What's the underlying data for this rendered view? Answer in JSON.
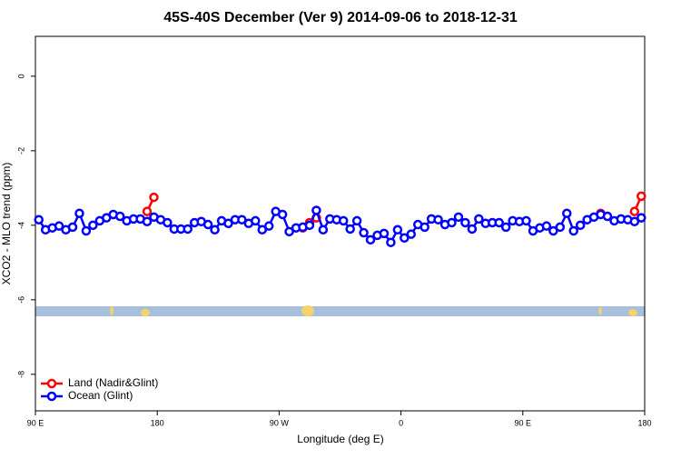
{
  "chart_data": {
    "type": "line",
    "title": "45S-40S December (Ver 9)   2014-09-06 to 2018-12-31",
    "xlabel": "Longitude (deg E)",
    "ylabel": "XCO2 - MLO trend (ppm)",
    "xlim": [
      90,
      540
    ],
    "xticks": [
      {
        "value": 90,
        "label": "90 E"
      },
      180,
      {
        "value": 270,
        "label": "90 W"
      },
      {
        "value": 360,
        "label": "0"
      },
      {
        "value": 450,
        "label": "90 E"
      },
      {
        "value": 540,
        "label": "180"
      }
    ],
    "ylim": [
      -8.98,
      1.07
    ],
    "yticks": [
      0,
      -2,
      -4,
      -6,
      -8
    ],
    "grid": false,
    "legend": "bottomleft",
    "series": [
      {
        "name": "Land (Nadir&Glint)",
        "color": "#ff0000",
        "x": [
          172.5,
          177.5,
          182.5,
          287.5,
          292.5,
          297.5,
          302.5,
          507.5,
          512.5,
          532.5,
          537.5
        ],
        "values": [
          -3.63,
          -3.25,
          null,
          -4.07,
          -3.93,
          -3.8,
          null,
          -3.68,
          null,
          -3.63,
          -3.22
        ]
      },
      {
        "name": "Ocean (Glint)",
        "color": "#0000ff",
        "x": [
          92.5,
          97.5,
          102.5,
          107.5,
          112.5,
          117.5,
          122.5,
          127.5,
          132.5,
          137.5,
          142.5,
          147.5,
          152.5,
          157.5,
          162.5,
          167.5,
          172.5,
          177.5,
          182.5,
          187.5,
          192.5,
          197.5,
          202.5,
          207.5,
          212.5,
          217.5,
          222.5,
          227.5,
          232.5,
          237.5,
          242.5,
          247.5,
          252.5,
          257.5,
          262.5,
          267.5,
          272.5,
          277.5,
          282.5,
          287.5,
          292.5,
          297.5,
          302.5,
          307.5,
          312.5,
          317.5,
          322.5,
          327.5,
          332.5,
          337.5,
          342.5,
          347.5,
          352.5,
          357.5,
          362.5,
          367.5,
          372.5,
          377.5,
          382.5,
          387.5,
          392.5,
          397.5,
          402.5,
          407.5,
          412.5,
          417.5,
          422.5,
          427.5,
          432.5,
          437.5,
          442.5,
          447.5,
          452.5,
          457.5,
          462.5,
          467.5,
          472.5,
          477.5,
          482.5,
          487.5,
          492.5,
          497.5,
          502.5,
          507.5,
          512.5,
          517.5,
          522.5,
          527.5,
          532.5,
          537.5
        ],
        "values": [
          -3.85,
          -4.12,
          -4.07,
          -4.02,
          -4.12,
          -4.05,
          -3.68,
          -4.15,
          -4.0,
          -3.88,
          -3.8,
          -3.71,
          -3.76,
          -3.88,
          -3.83,
          -3.83,
          -3.9,
          -3.78,
          -3.85,
          -3.93,
          -4.1,
          -4.1,
          -4.1,
          -3.93,
          -3.9,
          -3.98,
          -4.12,
          -3.88,
          -3.95,
          -3.85,
          -3.85,
          -3.95,
          -3.88,
          -4.12,
          -4.02,
          -3.63,
          -3.71,
          -4.17,
          -4.07,
          -4.05,
          -4.0,
          -3.6,
          -4.12,
          -3.83,
          -3.85,
          -3.88,
          -4.1,
          -3.88,
          -4.2,
          -4.39,
          -4.27,
          -4.22,
          -4.46,
          -4.12,
          -4.34,
          -4.24,
          -3.98,
          -4.05,
          -3.83,
          -3.85,
          -3.98,
          -3.93,
          -3.78,
          -3.93,
          -4.1,
          -3.83,
          -3.95,
          -3.93,
          -3.93,
          -4.05,
          -3.88,
          -3.9,
          -3.88,
          -4.15,
          -4.07,
          -4.02,
          -4.15,
          -4.05,
          -3.68,
          -4.15,
          -4.0,
          -3.85,
          -3.78,
          -3.71,
          -3.76,
          -3.88,
          -3.83,
          -3.85,
          -3.9,
          -3.8
        ]
      }
    ]
  }
}
